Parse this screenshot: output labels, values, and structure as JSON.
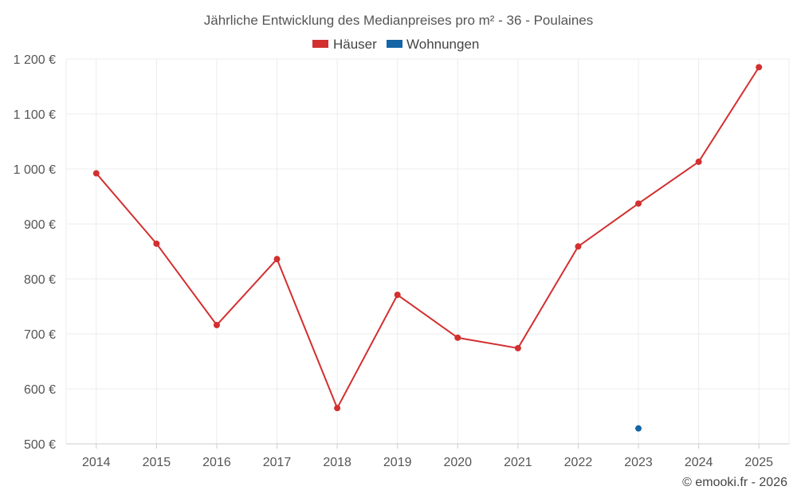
{
  "chart_data": {
    "type": "line",
    "title": "Jährliche Entwicklung des Medianpreises pro m² - 36 - Poulaines",
    "xlabel": "",
    "ylabel": "",
    "categories": [
      "2014",
      "2015",
      "2016",
      "2017",
      "2018",
      "2019",
      "2020",
      "2021",
      "2022",
      "2023",
      "2024",
      "2025"
    ],
    "ylim": [
      500,
      1200
    ],
    "yticks": [
      500,
      600,
      700,
      800,
      900,
      1000,
      1100,
      1200
    ],
    "ytick_labels": [
      "500 €",
      "600 €",
      "700 €",
      "800 €",
      "900 €",
      "1 000 €",
      "1 100 €",
      "1 200 €"
    ],
    "grid": true,
    "legend_position": "top-center",
    "series": [
      {
        "name": "Häuser",
        "color": "#d32f2f",
        "values": [
          992,
          864,
          716,
          836,
          565,
          771,
          693,
          674,
          859,
          937,
          1013,
          1185
        ]
      },
      {
        "name": "Wohnungen",
        "color": "#1565a6",
        "values": [
          null,
          null,
          null,
          null,
          null,
          null,
          null,
          null,
          null,
          528,
          null,
          null
        ]
      }
    ]
  },
  "credit": "© emooki.fr - 2026"
}
